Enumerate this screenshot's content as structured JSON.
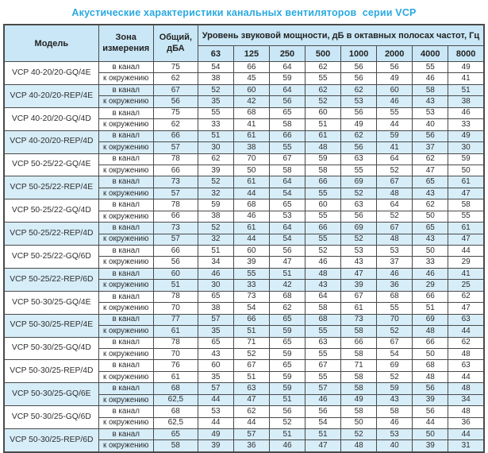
{
  "title": "Акустические характеристики канальных вентиляторов  серии VCP",
  "colors": {
    "accent": "#29a9e0",
    "header_bg": "#c9e7f6",
    "row_shade": "#d7edf8",
    "border": "#4a4a4a"
  },
  "table": {
    "col_model": "Модель",
    "col_zone": "Зона\nизмерения",
    "col_total": "Общий,\nдБА",
    "col_freq_group": "Уровень звуковой мощности, дБ в октавных полосах частот, Гц",
    "frequencies": [
      "63",
      "125",
      "250",
      "500",
      "1000",
      "2000",
      "4000",
      "8000"
    ],
    "zone_in_duct": "в канал",
    "zone_surround": "к окружению",
    "rows": [
      {
        "model": "VCP 40-20/20-GQ/4E",
        "shaded": false,
        "in_duct": {
          "total": "75",
          "values": [
            54,
            66,
            64,
            62,
            56,
            56,
            55,
            49
          ]
        },
        "surround": {
          "total": "62",
          "values": [
            38,
            45,
            59,
            55,
            56,
            49,
            46,
            41
          ]
        }
      },
      {
        "model": "VCP 40-20/20-REP/4E",
        "shaded": true,
        "in_duct": {
          "total": "67",
          "values": [
            52,
            60,
            64,
            62,
            62,
            60,
            58,
            51
          ]
        },
        "surround": {
          "total": "56",
          "values": [
            35,
            42,
            56,
            52,
            53,
            46,
            43,
            38
          ]
        }
      },
      {
        "model": "VCP 40-20/20-GQ/4D",
        "shaded": false,
        "in_duct": {
          "total": "75",
          "values": [
            55,
            68,
            65,
            60,
            56,
            55,
            53,
            46
          ]
        },
        "surround": {
          "total": "62",
          "values": [
            33,
            41,
            58,
            51,
            49,
            44,
            40,
            33
          ]
        }
      },
      {
        "model": "VCP 40-20/20-REP/4D",
        "shaded": true,
        "in_duct": {
          "total": "66",
          "values": [
            51,
            61,
            66,
            61,
            62,
            59,
            56,
            49
          ]
        },
        "surround": {
          "total": "57",
          "values": [
            30,
            38,
            55,
            48,
            56,
            41,
            37,
            30
          ]
        }
      },
      {
        "model": "VCP 50-25/22-GQ/4E",
        "shaded": false,
        "in_duct": {
          "total": "78",
          "values": [
            62,
            70,
            67,
            59,
            63,
            64,
            62,
            59
          ]
        },
        "surround": {
          "total": "66",
          "values": [
            39,
            50,
            58,
            58,
            55,
            52,
            47,
            50
          ]
        }
      },
      {
        "model": "VCP 50-25/22-REP/4E",
        "shaded": true,
        "in_duct": {
          "total": "73",
          "values": [
            52,
            61,
            64,
            66,
            69,
            67,
            65,
            61
          ]
        },
        "surround": {
          "total": "57",
          "values": [
            32,
            44,
            54,
            55,
            52,
            48,
            43,
            47
          ]
        }
      },
      {
        "model": "VCP 50-25/22-GQ/4D",
        "shaded": false,
        "in_duct": {
          "total": "78",
          "values": [
            59,
            68,
            65,
            60,
            63,
            64,
            62,
            58
          ]
        },
        "surround": {
          "total": "66",
          "values": [
            38,
            46,
            53,
            55,
            56,
            52,
            50,
            55
          ]
        }
      },
      {
        "model": "VCP 50-25/22-REP/4D",
        "shaded": true,
        "in_duct": {
          "total": "73",
          "values": [
            52,
            61,
            64,
            66,
            69,
            67,
            65,
            61
          ]
        },
        "surround": {
          "total": "57",
          "values": [
            32,
            44,
            54,
            55,
            52,
            48,
            43,
            47
          ]
        }
      },
      {
        "model": "VCP 50-25/22-GQ/6D",
        "shaded": false,
        "in_duct": {
          "total": "66",
          "values": [
            51,
            60,
            56,
            52,
            53,
            53,
            50,
            44
          ]
        },
        "surround": {
          "total": "56",
          "values": [
            34,
            39,
            47,
            46,
            43,
            37,
            33,
            29
          ]
        }
      },
      {
        "model": "VCP 50-25/22-REP/6D",
        "shaded": true,
        "in_duct": {
          "total": "60",
          "values": [
            46,
            55,
            51,
            48,
            47,
            46,
            46,
            41
          ]
        },
        "surround": {
          "total": "51",
          "values": [
            30,
            33,
            42,
            43,
            39,
            36,
            29,
            25
          ]
        }
      },
      {
        "model": "VCP 50-30/25-GQ/4E",
        "shaded": false,
        "in_duct": {
          "total": "78",
          "values": [
            65,
            73,
            68,
            64,
            67,
            68,
            66,
            62
          ]
        },
        "surround": {
          "total": "70",
          "values": [
            38,
            54,
            62,
            58,
            61,
            55,
            51,
            47
          ]
        }
      },
      {
        "model": "VCP 50-30/25-REP/4E",
        "shaded": true,
        "in_duct": {
          "total": "77",
          "values": [
            57,
            66,
            65,
            68,
            73,
            70,
            69,
            63
          ]
        },
        "surround": {
          "total": "61",
          "values": [
            35,
            51,
            59,
            55,
            58,
            52,
            48,
            44
          ]
        }
      },
      {
        "model": "VCP 50-30/25-GQ/4D",
        "shaded": false,
        "in_duct": {
          "total": "78",
          "values": [
            65,
            71,
            65,
            63,
            66,
            67,
            66,
            62
          ]
        },
        "surround": {
          "total": "70",
          "values": [
            43,
            52,
            59,
            55,
            58,
            54,
            50,
            48
          ]
        }
      },
      {
        "model": "VCP 50-30/25-REP/4D",
        "shaded": false,
        "in_duct": {
          "total": "76",
          "values": [
            60,
            67,
            65,
            67,
            71,
            69,
            68,
            63
          ]
        },
        "surround": {
          "total": "61",
          "values": [
            35,
            51,
            59,
            55,
            58,
            52,
            48,
            44
          ]
        }
      },
      {
        "model": "VCP 50-30/25-GQ/6E",
        "shaded": true,
        "in_duct": {
          "total": "68",
          "values": [
            57,
            63,
            59,
            57,
            58,
            59,
            56,
            48
          ]
        },
        "surround": {
          "total": "62,5",
          "values": [
            44,
            47,
            51,
            46,
            49,
            43,
            39,
            34
          ]
        }
      },
      {
        "model": "VCP 50-30/25-GQ/6D",
        "shaded": false,
        "in_duct": {
          "total": "68",
          "values": [
            53,
            62,
            56,
            56,
            58,
            58,
            56,
            48
          ]
        },
        "surround": {
          "total": "62,5",
          "values": [
            44,
            44,
            52,
            54,
            50,
            46,
            44,
            36
          ]
        }
      },
      {
        "model": "VCP 50-30/25-REP/6D",
        "shaded": true,
        "in_duct": {
          "total": "65",
          "values": [
            49,
            57,
            51,
            51,
            52,
            53,
            50,
            44
          ]
        },
        "surround": {
          "total": "58",
          "values": [
            39,
            36,
            46,
            47,
            48,
            40,
            39,
            31
          ]
        }
      }
    ]
  }
}
